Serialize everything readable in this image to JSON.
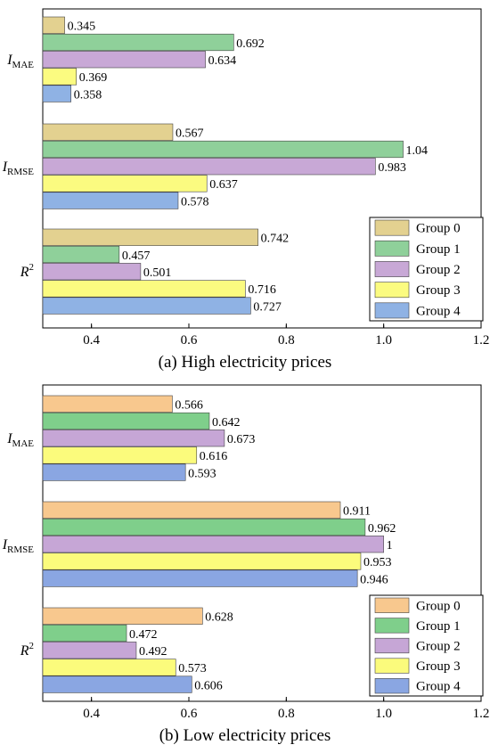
{
  "chart_data": [
    {
      "type": "bar",
      "orientation": "horizontal",
      "caption": "(a) High electricity prices",
      "categories": [
        {
          "main": "I",
          "sub": "MAE",
          "sup": ""
        },
        {
          "main": "I",
          "sub": "RMSE",
          "sup": ""
        },
        {
          "main": "R",
          "sub": "",
          "sup": "2"
        }
      ],
      "series": [
        {
          "name": "Group 0",
          "color": "#e3d190",
          "values": [
            0.345,
            0.567,
            0.742
          ]
        },
        {
          "name": "Group 1",
          "color": "#8fd09a",
          "values": [
            0.692,
            1.04,
            0.457
          ]
        },
        {
          "name": "Group 2",
          "color": "#c8a8d6",
          "values": [
            0.634,
            0.983,
            0.501
          ]
        },
        {
          "name": "Group 3",
          "color": "#fbfb80",
          "values": [
            0.369,
            0.637,
            0.716
          ]
        },
        {
          "name": "Group 4",
          "color": "#8fb2e4",
          "values": [
            0.358,
            0.578,
            0.727
          ]
        }
      ],
      "value_labels": [
        [
          "0.345",
          "0.567",
          "0.742"
        ],
        [
          "0.692",
          "1.04",
          "0.457"
        ],
        [
          "0.634",
          "0.983",
          "0.501"
        ],
        [
          "0.369",
          "0.637",
          "0.716"
        ],
        [
          "0.358",
          "0.578",
          "0.727"
        ]
      ],
      "xlim": [
        0.3,
        1.2
      ],
      "xticks": [
        0.4,
        0.6,
        0.8,
        1.0,
        1.2
      ],
      "xtick_labels": [
        "0.4",
        "0.6",
        "0.8",
        "1.0",
        "1.2"
      ],
      "legend_position": "bottom-right",
      "grid": false
    },
    {
      "type": "bar",
      "orientation": "horizontal",
      "caption": "(b) Low electricity prices",
      "categories": [
        {
          "main": "I",
          "sub": "MAE",
          "sup": ""
        },
        {
          "main": "I",
          "sub": "RMSE",
          "sup": ""
        },
        {
          "main": "R",
          "sub": "",
          "sup": "2"
        }
      ],
      "series": [
        {
          "name": "Group 0",
          "color": "#f8c88e",
          "values": [
            0.566,
            0.911,
            0.628
          ]
        },
        {
          "name": "Group 1",
          "color": "#7fcf8b",
          "values": [
            0.642,
            0.962,
            0.472
          ]
        },
        {
          "name": "Group 2",
          "color": "#c6a6d6",
          "values": [
            0.673,
            1.0,
            0.492
          ]
        },
        {
          "name": "Group 3",
          "color": "#fbfb7c",
          "values": [
            0.616,
            0.953,
            0.573
          ]
        },
        {
          "name": "Group 4",
          "color": "#8aa6e2",
          "values": [
            0.593,
            0.946,
            0.606
          ]
        }
      ],
      "value_labels": [
        [
          "0.566",
          "0.911",
          "0.628"
        ],
        [
          "0.642",
          "0.962",
          "0.472"
        ],
        [
          "0.673",
          "1",
          "0.492"
        ],
        [
          "0.616",
          "0.953",
          "0.573"
        ],
        [
          "0.593",
          "0.946",
          "0.606"
        ]
      ],
      "xlim": [
        0.3,
        1.2
      ],
      "xticks": [
        0.4,
        0.6,
        0.8,
        1.0,
        1.2
      ],
      "xtick_labels": [
        "0.4",
        "0.6",
        "0.8",
        "1.0",
        "1.2"
      ],
      "legend_position": "bottom-right",
      "grid": false
    }
  ]
}
